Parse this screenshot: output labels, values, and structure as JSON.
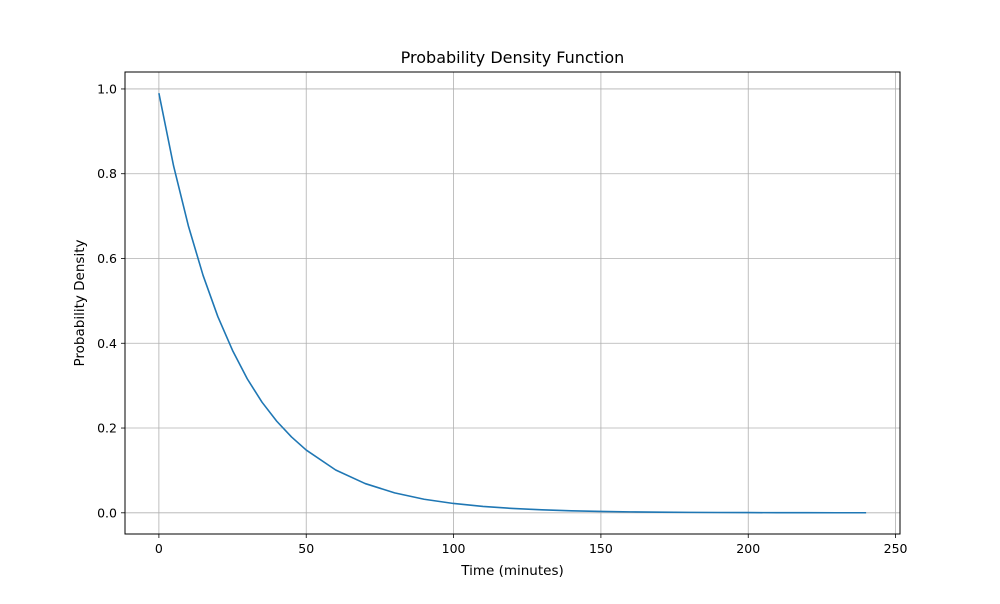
{
  "chart_data": {
    "type": "line",
    "title": "Probability Density Function",
    "xlabel": "Time (minutes)",
    "ylabel": "Probability Density",
    "xlim": [
      -11.5,
      251.5
    ],
    "ylim": [
      -0.05,
      1.04
    ],
    "xticks": [
      0,
      50,
      100,
      150,
      200,
      250
    ],
    "yticks": [
      0.0,
      0.2,
      0.4,
      0.6,
      0.8,
      1.0
    ],
    "xtick_labels": [
      "0",
      "50",
      "100",
      "150",
      "200",
      "250"
    ],
    "ytick_labels": [
      "0.0",
      "0.2",
      "0.4",
      "0.6",
      "0.8",
      "1.0"
    ],
    "grid": true,
    "series": [
      {
        "color": "#1f77b4",
        "x": [
          0,
          5,
          10,
          15,
          20,
          25,
          30,
          35,
          40,
          45,
          50,
          60,
          70,
          80,
          90,
          100,
          110,
          120,
          130,
          140,
          150,
          160,
          170,
          180,
          190,
          200,
          210,
          220,
          230,
          240
        ],
        "y": [
          0.99,
          0.818,
          0.677,
          0.56,
          0.463,
          0.383,
          0.316,
          0.261,
          0.216,
          0.179,
          0.148,
          0.101,
          0.069,
          0.047,
          0.032,
          0.022,
          0.015,
          0.0103,
          0.007,
          0.0048,
          0.0033,
          0.0022,
          0.0015,
          0.001,
          0.0007,
          0.0005,
          0.0003,
          0.0002,
          0.0001,
          0.0001
        ]
      }
    ]
  }
}
